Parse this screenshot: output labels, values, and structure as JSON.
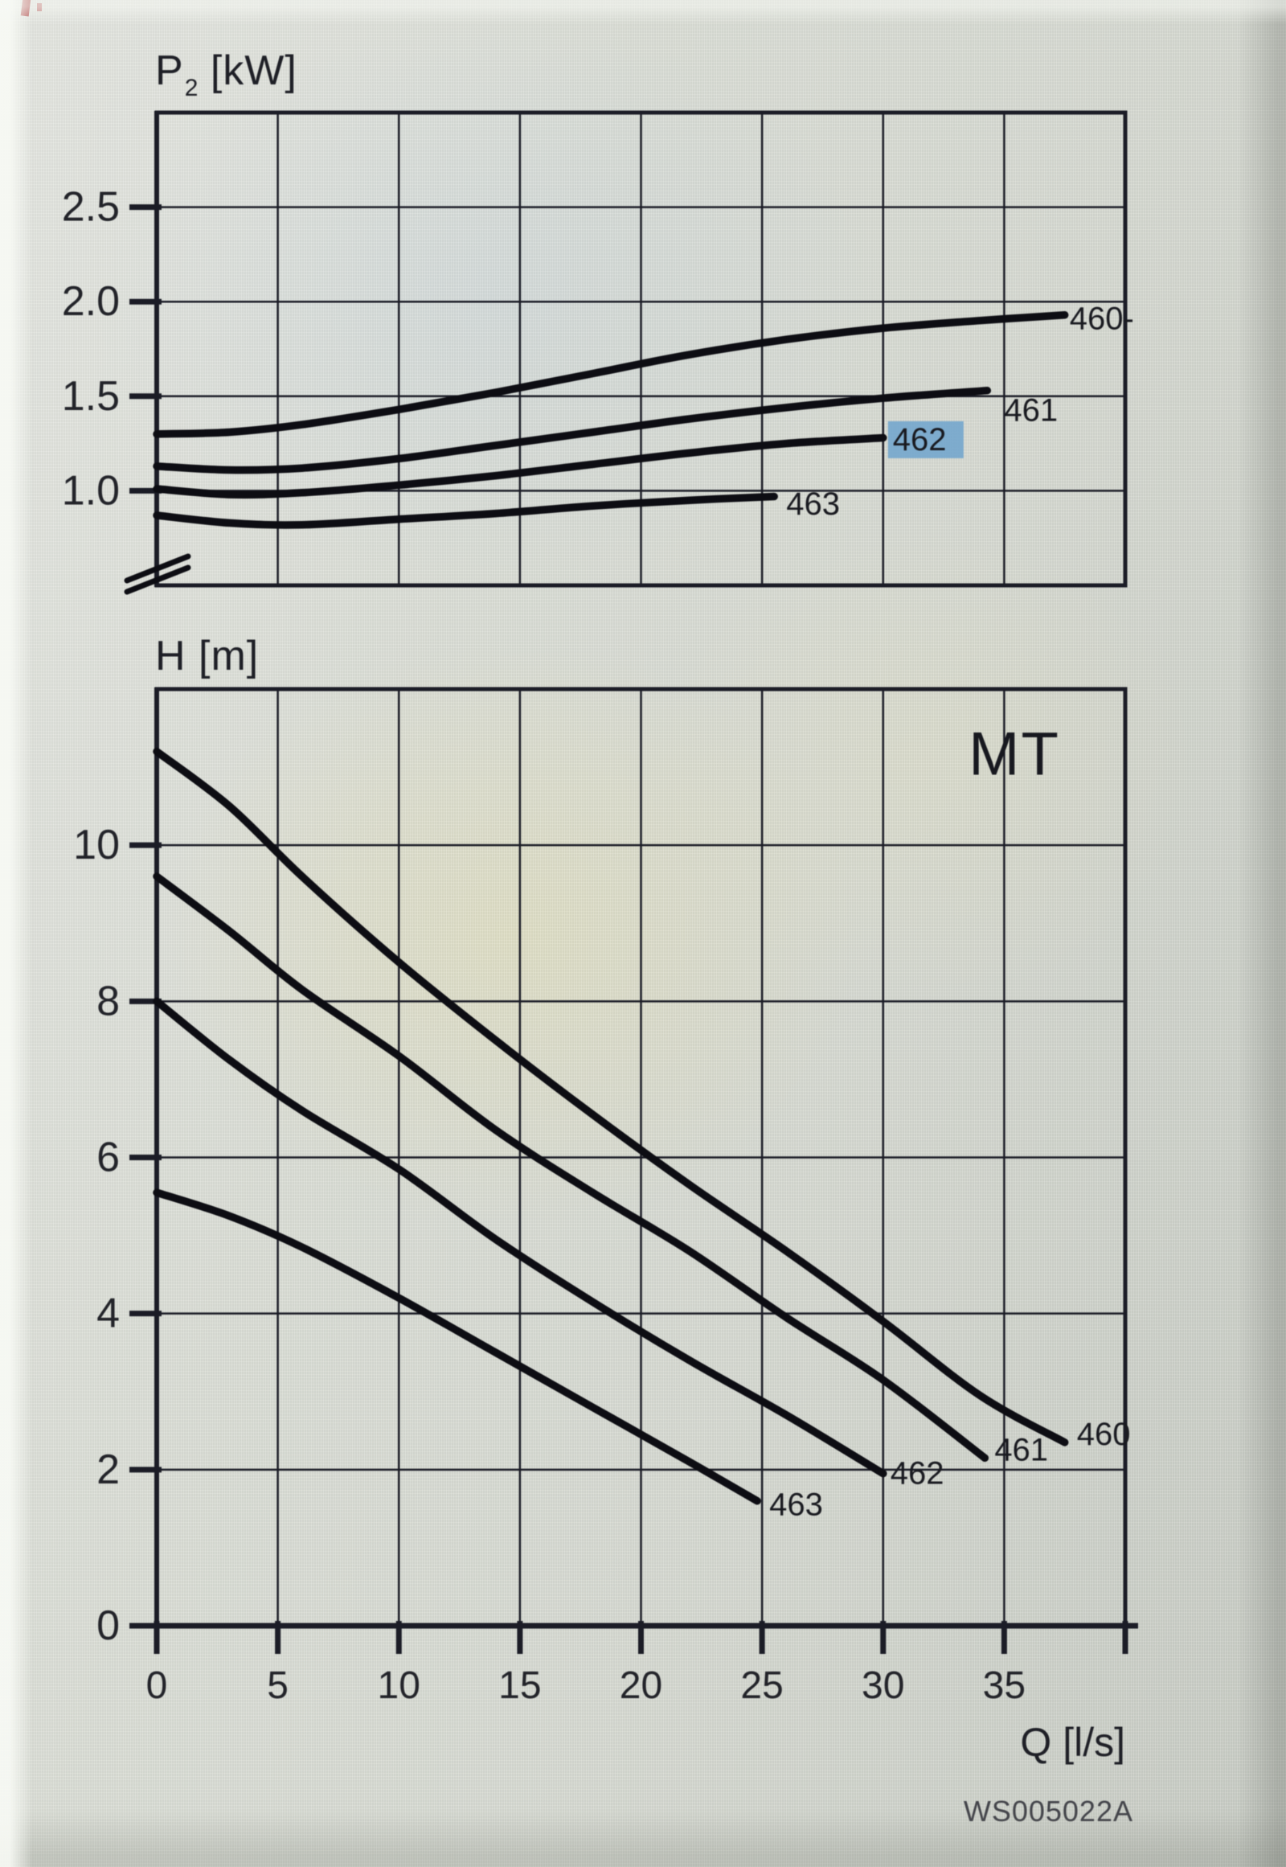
{
  "watermark": "WS005022A",
  "chart_data": [
    {
      "type": "line",
      "id": "power-curves",
      "title": "P2 [kW]",
      "ylabel_parts": {
        "main": "P",
        "sub": "2",
        "unit": " [kW]"
      },
      "xlabel": "",
      "xlim": [
        0,
        40
      ],
      "ylim": [
        0.5,
        3.0
      ],
      "grid": true,
      "x_grid_step": 5,
      "yticks": [
        1.0,
        1.5,
        2.0,
        2.5
      ],
      "ytick_labels": [
        "1.0",
        "1.5",
        "2.0",
        "2.5"
      ],
      "axis_break": true,
      "legend_position": "inline-right",
      "series": [
        {
          "name": "460",
          "label": "460-",
          "label_at": [
            37.7,
            1.91
          ],
          "points": [
            [
              0,
              1.3
            ],
            [
              3,
              1.31
            ],
            [
              6,
              1.35
            ],
            [
              10,
              1.43
            ],
            [
              14,
              1.52
            ],
            [
              18,
              1.62
            ],
            [
              22,
              1.72
            ],
            [
              26,
              1.8
            ],
            [
              30,
              1.86
            ],
            [
              34,
              1.9
            ],
            [
              37.5,
              1.93
            ]
          ]
        },
        {
          "name": "461",
          "label": "461",
          "label_at": [
            35.0,
            1.425
          ],
          "points": [
            [
              0,
              1.13
            ],
            [
              3,
              1.11
            ],
            [
              6,
              1.12
            ],
            [
              10,
              1.17
            ],
            [
              14,
              1.24
            ],
            [
              18,
              1.31
            ],
            [
              22,
              1.38
            ],
            [
              26,
              1.44
            ],
            [
              30,
              1.49
            ],
            [
              34.3,
              1.53
            ]
          ]
        },
        {
          "name": "462",
          "label": "462",
          "label_at": [
            30.4,
            1.27
          ],
          "highlight": true,
          "highlight_color": "#6fa3cc",
          "points": [
            [
              0,
              1.01
            ],
            [
              3,
              0.98
            ],
            [
              6,
              0.99
            ],
            [
              10,
              1.03
            ],
            [
              14,
              1.08
            ],
            [
              18,
              1.14
            ],
            [
              22,
              1.2
            ],
            [
              26,
              1.25
            ],
            [
              30,
              1.28
            ]
          ]
        },
        {
          "name": "463",
          "label": "463",
          "label_at": [
            26.0,
            0.93
          ],
          "points": [
            [
              0,
              0.87
            ],
            [
              3,
              0.83
            ],
            [
              6,
              0.82
            ],
            [
              10,
              0.85
            ],
            [
              14,
              0.88
            ],
            [
              18,
              0.92
            ],
            [
              22,
              0.95
            ],
            [
              25.5,
              0.97
            ]
          ]
        }
      ]
    },
    {
      "type": "line",
      "id": "head-curves",
      "title": "H [m]",
      "ylabel": "H [m]",
      "xlabel": "Q [l/s]",
      "corner_label": "MT",
      "xlim": [
        0,
        40
      ],
      "ylim": [
        0,
        12
      ],
      "grid": true,
      "x_grid_step": 5,
      "yticks": [
        0,
        2,
        4,
        6,
        8,
        10
      ],
      "ytick_labels": [
        "0",
        "2",
        "4",
        "6",
        "8",
        "10"
      ],
      "xticks": [
        0,
        5,
        10,
        15,
        20,
        25,
        30,
        35,
        40
      ],
      "xtick_labels": [
        "0",
        "5",
        "10",
        "15",
        "20",
        "25",
        "30",
        "35"
      ],
      "legend_position": "inline-right",
      "series": [
        {
          "name": "460",
          "label": "460",
          "label_at": [
            38.0,
            2.45
          ],
          "points": [
            [
              0,
              11.2
            ],
            [
              3,
              10.5
            ],
            [
              6,
              9.6
            ],
            [
              10,
              8.5
            ],
            [
              14,
              7.5
            ],
            [
              18,
              6.55
            ],
            [
              22,
              5.65
            ],
            [
              26,
              4.8
            ],
            [
              30,
              3.9
            ],
            [
              34,
              2.95
            ],
            [
              37.5,
              2.35
            ]
          ]
        },
        {
          "name": "461",
          "label": "461",
          "label_at": [
            34.6,
            2.25
          ],
          "points": [
            [
              0,
              9.6
            ],
            [
              3,
              8.9
            ],
            [
              6,
              8.15
            ],
            [
              10,
              7.3
            ],
            [
              14,
              6.35
            ],
            [
              18,
              5.55
            ],
            [
              22,
              4.8
            ],
            [
              26,
              3.95
            ],
            [
              30,
              3.15
            ],
            [
              34.2,
              2.15
            ]
          ]
        },
        {
          "name": "462",
          "label": "462",
          "label_at": [
            30.3,
            1.95
          ],
          "points": [
            [
              0,
              8.0
            ],
            [
              3,
              7.25
            ],
            [
              6,
              6.6
            ],
            [
              10,
              5.85
            ],
            [
              14,
              4.95
            ],
            [
              18,
              4.15
            ],
            [
              22,
              3.4
            ],
            [
              26,
              2.7
            ],
            [
              30,
              1.95
            ]
          ]
        },
        {
          "name": "463",
          "label": "463",
          "label_at": [
            25.3,
            1.55
          ],
          "points": [
            [
              0,
              5.55
            ],
            [
              3,
              5.25
            ],
            [
              6,
              4.85
            ],
            [
              10,
              4.2
            ],
            [
              14,
              3.5
            ],
            [
              18,
              2.8
            ],
            [
              22,
              2.1
            ],
            [
              24.8,
              1.6
            ]
          ]
        }
      ]
    }
  ],
  "colors": {
    "ink": "#1b1c26",
    "curve": "#0d0d13",
    "text": "#222329",
    "highlight": "#6fa3cc"
  }
}
